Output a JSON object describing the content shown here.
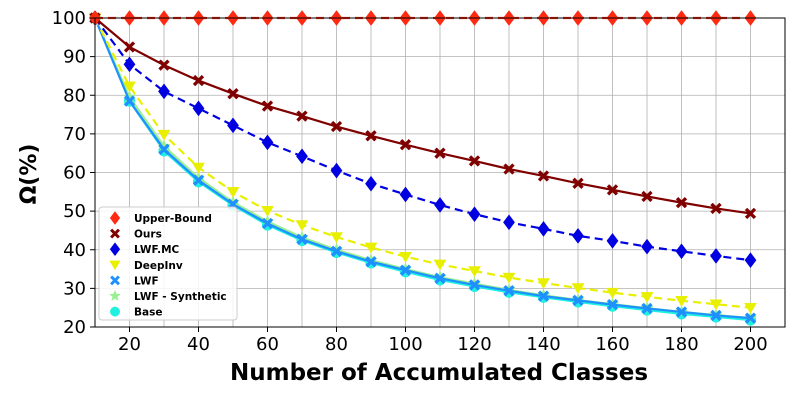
{
  "chart_data": {
    "type": "line",
    "xlabel": "Number of Accumulated Classes",
    "ylabel": "Ω(%)",
    "xlim": [
      10,
      210
    ],
    "ylim": [
      20,
      100
    ],
    "xticks": [
      20,
      40,
      60,
      80,
      100,
      120,
      140,
      160,
      180,
      200
    ],
    "yticks": [
      20,
      30,
      40,
      50,
      60,
      70,
      80,
      90,
      100
    ],
    "grid": true,
    "legend_position": "lower-left",
    "x": [
      10,
      20,
      30,
      40,
      50,
      60,
      70,
      80,
      90,
      100,
      110,
      120,
      130,
      140,
      150,
      160,
      170,
      180,
      190,
      200
    ],
    "series": [
      {
        "name": "Upper-Bound",
        "color": "#ff2a12",
        "marker": "diamond",
        "line": "dashed",
        "values": [
          100,
          100,
          100,
          100,
          100,
          100,
          100,
          100,
          100,
          100,
          100,
          100,
          100,
          100,
          100,
          100,
          100,
          100,
          100,
          100
        ]
      },
      {
        "name": "Ours",
        "color": "#800000",
        "marker": "x-filled",
        "line": "solid",
        "values": [
          100,
          92.5,
          87.8,
          83.8,
          80.4,
          77.2,
          74.6,
          71.9,
          69.5,
          67.2,
          65.0,
          63.0,
          60.9,
          59.1,
          57.2,
          55.5,
          53.8,
          52.2,
          50.7,
          49.4
        ]
      },
      {
        "name": "LWF.MC",
        "color": "#0000e0",
        "marker": "diamond",
        "line": "dashed",
        "values": [
          100,
          88.0,
          81.0,
          76.6,
          72.2,
          67.8,
          64.2,
          60.5,
          57.1,
          54.3,
          51.6,
          49.2,
          47.1,
          45.4,
          43.6,
          42.3,
          40.8,
          39.6,
          38.4,
          37.3
        ]
      },
      {
        "name": "DeepInv",
        "color": "#e8f000",
        "marker": "triangle-down",
        "line": "dashed",
        "values": [
          100,
          82.3,
          69.8,
          61.3,
          55.0,
          50.1,
          46.4,
          43.3,
          40.6,
          38.2,
          36.2,
          34.5,
          32.8,
          31.4,
          30.1,
          28.9,
          27.8,
          26.8,
          25.9,
          25.0
        ]
      },
      {
        "name": "LWF",
        "color": "#1e90ff",
        "marker": "x-filled",
        "line": "solid",
        "values": [
          100,
          78.5,
          66.0,
          58.0,
          51.8,
          46.8,
          42.7,
          39.6,
          36.9,
          34.7,
          32.6,
          30.9,
          29.4,
          28.0,
          26.9,
          25.8,
          24.8,
          23.9,
          23.0,
          22.3
        ]
      },
      {
        "name": "LWF - Synthetic",
        "color": "#98f090",
        "marker": "star",
        "line": "solid",
        "values": [
          100,
          79.5,
          66.8,
          58.6,
          52.3,
          47.3,
          43.2,
          40.0,
          37.3,
          35.0,
          32.9,
          31.2,
          29.6,
          28.2,
          27.0,
          25.9,
          24.9,
          23.9,
          23.1,
          22.3
        ]
      },
      {
        "name": "Base",
        "color": "#1ff0e0",
        "marker": "circle",
        "line": "solid",
        "values": [
          100,
          78.5,
          65.6,
          57.6,
          51.5,
          46.4,
          42.4,
          39.3,
          36.6,
          34.3,
          32.2,
          30.5,
          29.0,
          27.7,
          26.5,
          25.4,
          24.4,
          23.4,
          22.6,
          21.8
        ]
      }
    ]
  }
}
